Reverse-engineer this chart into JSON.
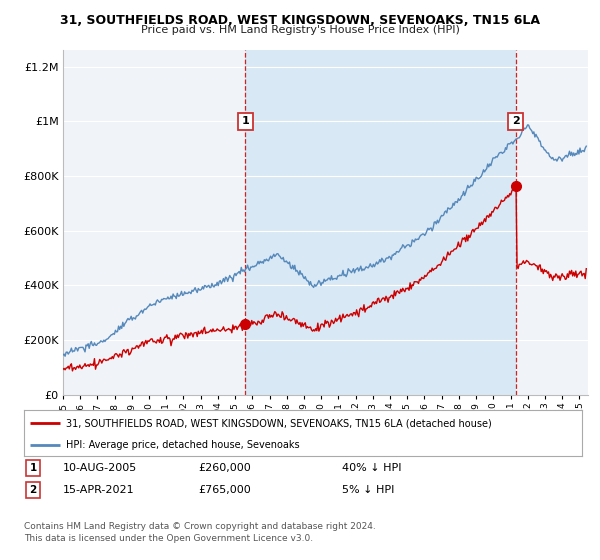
{
  "title1": "31, SOUTHFIELDS ROAD, WEST KINGSDOWN, SEVENOAKS, TN15 6LA",
  "title2": "Price paid vs. HM Land Registry's House Price Index (HPI)",
  "legend_red": "31, SOUTHFIELDS ROAD, WEST KINGSDOWN, SEVENOAKS, TN15 6LA (detached house)",
  "legend_blue": "HPI: Average price, detached house, Sevenoaks",
  "annotation1_date": "10-AUG-2005",
  "annotation1_price": "£260,000",
  "annotation1_hpi": "40% ↓ HPI",
  "annotation1_year": 2005.6,
  "annotation1_value": 260000,
  "annotation2_date": "15-APR-2021",
  "annotation2_price": "£765,000",
  "annotation2_hpi": "5% ↓ HPI",
  "annotation2_year": 2021.29,
  "annotation2_value": 765000,
  "footer": "Contains HM Land Registry data © Crown copyright and database right 2024.\nThis data is licensed under the Open Government Licence v3.0.",
  "ylim": [
    0,
    1260000
  ],
  "xlim_start": 1995.0,
  "xlim_end": 2025.5,
  "background_color": "#ffffff",
  "plot_bg_color": "#f0f4f8",
  "shade_color": "#d8e8f4",
  "red_color": "#cc0000",
  "blue_color": "#5588bb",
  "grid_color": "#ffffff",
  "box_edge_color": "#cc3333"
}
